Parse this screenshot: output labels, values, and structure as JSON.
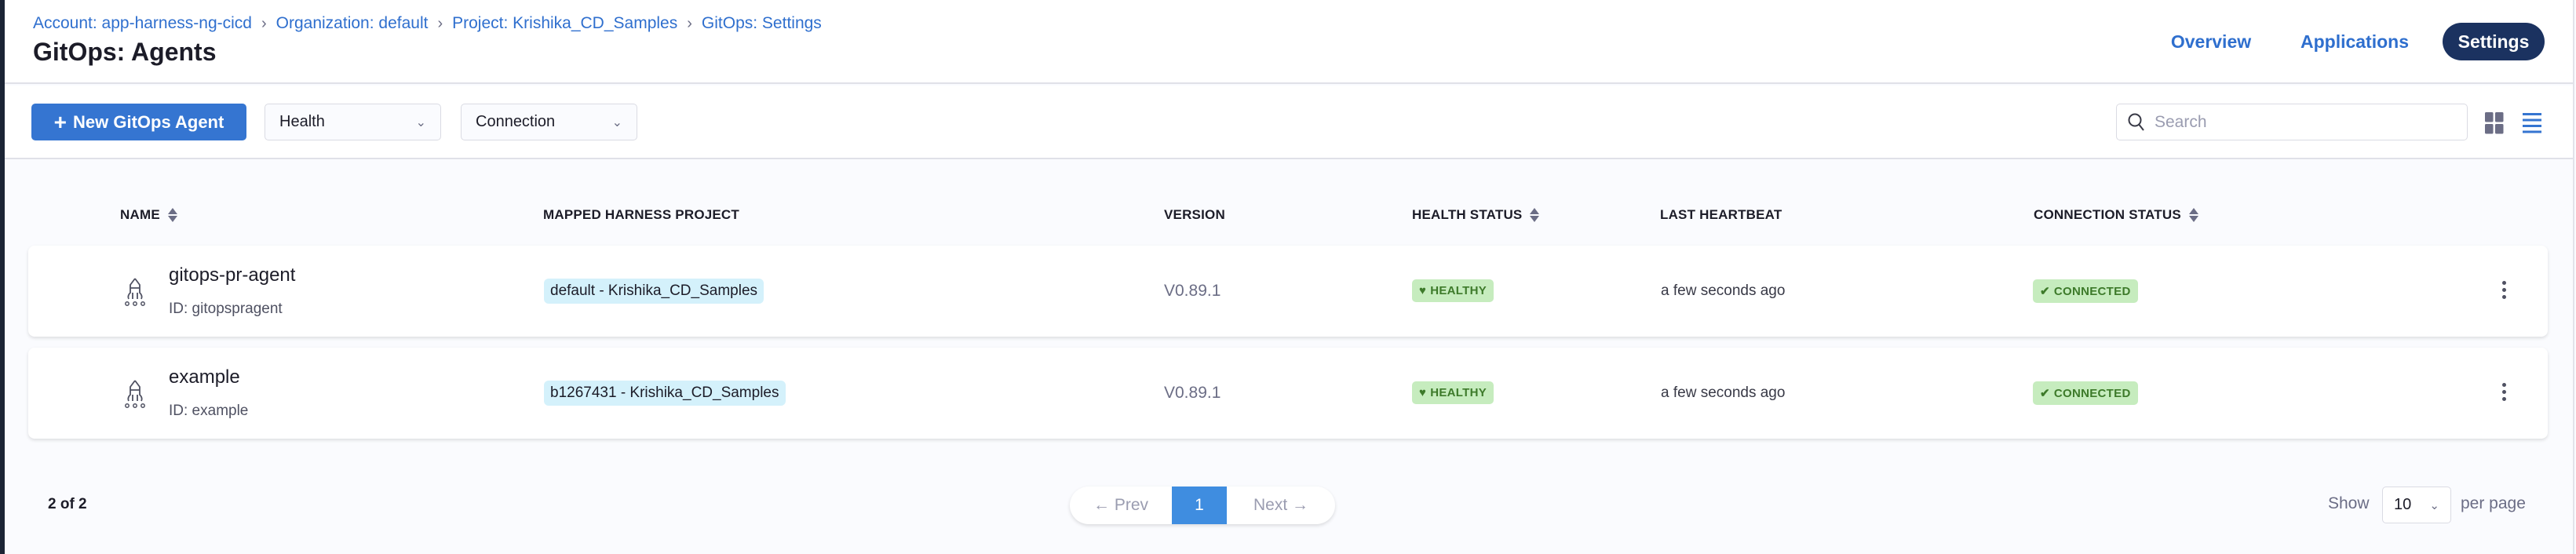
{
  "breadcrumb": [
    "Account: app-harness-ng-cicd",
    "Organization: default",
    "Project: Krishika_CD_Samples",
    "GitOps: Settings"
  ],
  "title": "GitOps: Agents",
  "nav": {
    "tabs": [
      {
        "label": "Overview",
        "active": false
      },
      {
        "label": "Applications",
        "active": false
      },
      {
        "label": "Settings",
        "active": true
      }
    ]
  },
  "toolbar": {
    "new_button": "New GitOps Agent",
    "filters": [
      {
        "label": "Health"
      },
      {
        "label": "Connection"
      }
    ],
    "search": {
      "placeholder": "Search",
      "value": ""
    },
    "view_mode": "list"
  },
  "table": {
    "columns": [
      "NAME",
      "MAPPED HARNESS PROJECT",
      "VERSION",
      "HEALTH STATUS",
      "LAST HEARTBEAT",
      "CONNECTION STATUS"
    ],
    "rows": [
      {
        "name": "gitops-pr-agent",
        "id": "ID: gitopspragent",
        "project": "default - Krishika_CD_Samples",
        "version": "V0.89.1",
        "health": "HEALTHY",
        "heartbeat": "a few seconds ago",
        "connection": "CONNECTED"
      },
      {
        "name": "example",
        "id": "ID: example",
        "project": "b1267431 - Krishika_CD_Samples",
        "version": "V0.89.1",
        "health": "HEALTHY",
        "heartbeat": "a few seconds ago",
        "connection": "CONNECTED"
      }
    ]
  },
  "footer": {
    "count": "2 of 2",
    "prev": "← Prev",
    "page": "1",
    "next": "Next →",
    "show": "Show",
    "page_size": "10",
    "per_page": "per page"
  },
  "colors": {
    "accent": "#3575d1",
    "active_nav": "#1b3260",
    "healthy_bg": "#c6ecbe",
    "healthy_text": "#3d7a2a",
    "project_tag_bg": "#d4f1fb"
  }
}
